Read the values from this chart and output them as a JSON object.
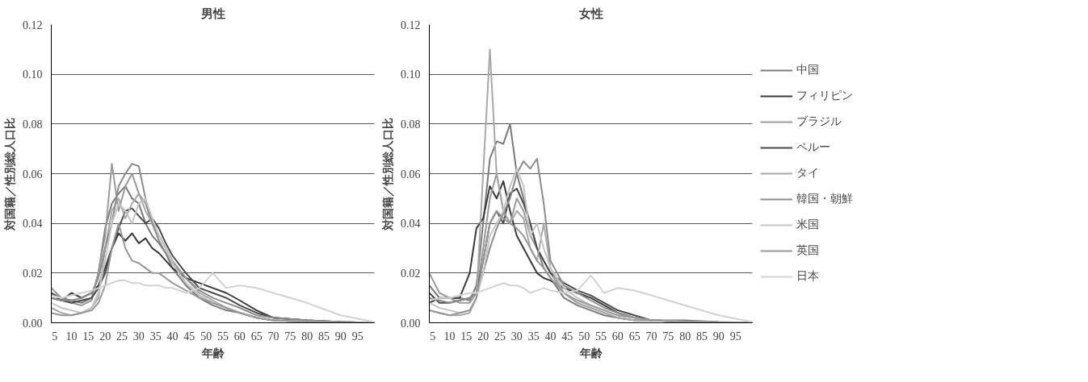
{
  "chart_data": [
    {
      "type": "line",
      "title": "男性",
      "xlabel": "年齢",
      "ylabel": "対国籍／性別総人口比",
      "grid": "y",
      "x": [
        4,
        7,
        10,
        13,
        16,
        18,
        20,
        22,
        24,
        26,
        28,
        30,
        32,
        34,
        36,
        38,
        40,
        44,
        48,
        52,
        56,
        60,
        65,
        70,
        80,
        90,
        100
      ],
      "xlim": [
        4,
        100
      ],
      "xticks": [
        5,
        10,
        15,
        20,
        25,
        30,
        35,
        40,
        45,
        50,
        55,
        60,
        65,
        70,
        75,
        80,
        85,
        90,
        95
      ],
      "ylim": [
        0,
        0.12
      ],
      "yticks": [
        {
          "value": 0,
          "label": "0.00"
        },
        {
          "value": 0.02,
          "label": "0.02"
        },
        {
          "value": 0.04,
          "label": "0.04"
        },
        {
          "value": 0.06,
          "label": "0.06"
        },
        {
          "value": 0.08,
          "label": "0.08"
        },
        {
          "value": 0.1,
          "label": "0.10"
        },
        {
          "value": 0.12,
          "label": "0.12"
        }
      ],
      "series": [
        {
          "color": "#7a7a7a",
          "values": [
            0.012,
            0.01,
            0.009,
            0.008,
            0.01,
            0.02,
            0.038,
            0.048,
            0.052,
            0.055,
            0.05,
            0.048,
            0.04,
            0.035,
            0.032,
            0.028,
            0.022,
            0.015,
            0.01,
            0.007,
            0.005,
            0.004,
            0.002,
            0.001,
            0.0005,
            0.0002,
            0
          ]
        },
        {
          "color": "#3a3a3a",
          "values": [
            0.01,
            0.009,
            0.012,
            0.01,
            0.012,
            0.015,
            0.022,
            0.03,
            0.036,
            0.033,
            0.036,
            0.032,
            0.034,
            0.03,
            0.028,
            0.025,
            0.022,
            0.018,
            0.016,
            0.014,
            0.012,
            0.009,
            0.005,
            0.002,
            0.001,
            0.0003,
            0
          ]
        },
        {
          "color": "#9a9a9a",
          "values": [
            0.014,
            0.01,
            0.008,
            0.007,
            0.009,
            0.02,
            0.035,
            0.064,
            0.045,
            0.055,
            0.06,
            0.052,
            0.048,
            0.04,
            0.035,
            0.03,
            0.024,
            0.016,
            0.011,
            0.008,
            0.006,
            0.004,
            0.002,
            0.001,
            0.0005,
            0.0002,
            0
          ]
        },
        {
          "color": "#4a4a4a",
          "values": [
            0.012,
            0.009,
            0.008,
            0.009,
            0.01,
            0.014,
            0.02,
            0.03,
            0.038,
            0.045,
            0.046,
            0.043,
            0.04,
            0.042,
            0.038,
            0.032,
            0.027,
            0.02,
            0.014,
            0.012,
            0.01,
            0.007,
            0.004,
            0.002,
            0.001,
            0.0003,
            0
          ]
        },
        {
          "color": "#a8a8a8",
          "values": [
            0.006,
            0.004,
            0.003,
            0.004,
            0.006,
            0.01,
            0.03,
            0.045,
            0.05,
            0.042,
            0.048,
            0.052,
            0.045,
            0.04,
            0.035,
            0.03,
            0.025,
            0.018,
            0.012,
            0.009,
            0.006,
            0.004,
            0.002,
            0.001,
            0.0005,
            0.0002,
            0
          ]
        },
        {
          "color": "#8c8c8c",
          "values": [
            0.01,
            0.009,
            0.009,
            0.01,
            0.012,
            0.018,
            0.03,
            0.04,
            0.055,
            0.06,
            0.064,
            0.063,
            0.05,
            0.04,
            0.033,
            0.028,
            0.024,
            0.018,
            0.013,
            0.01,
            0.008,
            0.006,
            0.003,
            0.002,
            0.001,
            0.0003,
            0
          ]
        },
        {
          "color": "#c4c4c4",
          "values": [
            0.008,
            0.006,
            0.005,
            0.004,
            0.006,
            0.012,
            0.025,
            0.04,
            0.048,
            0.045,
            0.04,
            0.048,
            0.05,
            0.042,
            0.035,
            0.03,
            0.024,
            0.016,
            0.011,
            0.008,
            0.006,
            0.004,
            0.002,
            0.001,
            0.0005,
            0.0002,
            0
          ]
        },
        {
          "color": "#989898",
          "values": [
            0.004,
            0.003,
            0.003,
            0.004,
            0.005,
            0.008,
            0.015,
            0.03,
            0.04,
            0.03,
            0.025,
            0.024,
            0.022,
            0.02,
            0.02,
            0.018,
            0.016,
            0.013,
            0.01,
            0.008,
            0.006,
            0.004,
            0.002,
            0.001,
            0.0005,
            0.0002,
            0
          ]
        },
        {
          "color": "#d2d2d2",
          "values": [
            0.011,
            0.01,
            0.011,
            0.012,
            0.013,
            0.014,
            0.015,
            0.016,
            0.017,
            0.017,
            0.016,
            0.016,
            0.015,
            0.015,
            0.015,
            0.014,
            0.014,
            0.012,
            0.014,
            0.02,
            0.014,
            0.015,
            0.014,
            0.012,
            0.008,
            0.003,
            0.0003
          ]
        }
      ]
    },
    {
      "type": "line",
      "title": "女性",
      "xlabel": "年齢",
      "ylabel": "対国籍／性別総人口比",
      "legend": "right",
      "grid": "y",
      "x": [
        4,
        7,
        10,
        13,
        16,
        18,
        20,
        22,
        24,
        26,
        28,
        30,
        32,
        34,
        36,
        38,
        40,
        44,
        48,
        52,
        56,
        60,
        65,
        70,
        80,
        90,
        100
      ],
      "xlim": [
        4,
        100
      ],
      "xticks": [
        5,
        10,
        15,
        20,
        25,
        30,
        35,
        40,
        45,
        50,
        55,
        60,
        65,
        70,
        75,
        80,
        85,
        90,
        95
      ],
      "ylim": [
        0,
        0.12
      ],
      "yticks": [
        {
          "value": 0,
          "label": "0.00"
        },
        {
          "value": 0.02,
          "label": "0.02"
        },
        {
          "value": 0.04,
          "label": "0.04"
        },
        {
          "value": 0.06,
          "label": "0.06"
        },
        {
          "value": 0.08,
          "label": "0.08"
        },
        {
          "value": 0.1,
          "label": "0.10"
        },
        {
          "value": 0.12,
          "label": "0.12"
        }
      ],
      "series": [
        {
          "name": "中国",
          "color": "#7a7a7a",
          "values": [
            0.015,
            0.01,
            0.01,
            0.01,
            0.009,
            0.015,
            0.04,
            0.066,
            0.073,
            0.072,
            0.08,
            0.06,
            0.05,
            0.04,
            0.03,
            0.022,
            0.018,
            0.01,
            0.007,
            0.005,
            0.003,
            0.002,
            0.001,
            0.001,
            0.001,
            0.0003,
            0
          ]
        },
        {
          "name": "フィリピン",
          "color": "#3a3a3a",
          "values": [
            0.008,
            0.01,
            0.01,
            0.01,
            0.02,
            0.038,
            0.042,
            0.055,
            0.05,
            0.057,
            0.045,
            0.035,
            0.03,
            0.025,
            0.02,
            0.018,
            0.017,
            0.014,
            0.012,
            0.01,
            0.007,
            0.004,
            0.002,
            0.001,
            0.0005,
            0.0002,
            0
          ]
        },
        {
          "name": "ブラジル",
          "color": "#9a9a9a",
          "values": [
            0.02,
            0.012,
            0.01,
            0.008,
            0.008,
            0.012,
            0.03,
            0.05,
            0.06,
            0.045,
            0.04,
            0.05,
            0.045,
            0.035,
            0.03,
            0.025,
            0.02,
            0.012,
            0.008,
            0.006,
            0.004,
            0.002,
            0.001,
            0.001,
            0.0005,
            0.0002,
            0
          ]
        },
        {
          "name": "ペルー",
          "color": "#4a4a4a",
          "values": [
            0.012,
            0.008,
            0.008,
            0.009,
            0.01,
            0.012,
            0.025,
            0.04,
            0.045,
            0.04,
            0.052,
            0.054,
            0.048,
            0.04,
            0.03,
            0.025,
            0.02,
            0.016,
            0.013,
            0.011,
            0.008,
            0.005,
            0.003,
            0.001,
            0.0005,
            0.0002,
            0
          ]
        },
        {
          "name": "タイ",
          "color": "#a8a8a8",
          "values": [
            0.005,
            0.004,
            0.003,
            0.003,
            0.004,
            0.01,
            0.06,
            0.11,
            0.06,
            0.045,
            0.04,
            0.045,
            0.042,
            0.03,
            0.025,
            0.04,
            0.022,
            0.012,
            0.008,
            0.006,
            0.004,
            0.002,
            0.001,
            0.001,
            0.0005,
            0.0002,
            0
          ]
        },
        {
          "name": "韓国・朝鮮",
          "color": "#8c8c8c",
          "values": [
            0.01,
            0.009,
            0.008,
            0.009,
            0.01,
            0.012,
            0.02,
            0.03,
            0.038,
            0.044,
            0.05,
            0.06,
            0.065,
            0.062,
            0.066,
            0.048,
            0.025,
            0.015,
            0.012,
            0.009,
            0.006,
            0.004,
            0.002,
            0.001,
            0.0005,
            0.0002,
            0
          ]
        },
        {
          "name": "米国",
          "color": "#c4c4c4",
          "values": [
            0.008,
            0.006,
            0.005,
            0.004,
            0.005,
            0.01,
            0.02,
            0.035,
            0.04,
            0.045,
            0.055,
            0.062,
            0.055,
            0.035,
            0.04,
            0.03,
            0.022,
            0.014,
            0.01,
            0.007,
            0.005,
            0.003,
            0.002,
            0.001,
            0.0005,
            0.0002,
            0
          ]
        },
        {
          "name": "英国",
          "color": "#989898",
          "values": [
            0.005,
            0.004,
            0.003,
            0.004,
            0.005,
            0.01,
            0.025,
            0.04,
            0.045,
            0.042,
            0.04,
            0.038,
            0.035,
            0.03,
            0.025,
            0.022,
            0.018,
            0.012,
            0.009,
            0.007,
            0.005,
            0.003,
            0.002,
            0.001,
            0.0005,
            0.0002,
            0
          ]
        },
        {
          "name": "日本",
          "color": "#d2d2d2",
          "values": [
            0.009,
            0.01,
            0.01,
            0.011,
            0.012,
            0.012,
            0.013,
            0.014,
            0.015,
            0.016,
            0.015,
            0.015,
            0.014,
            0.012,
            0.013,
            0.014,
            0.013,
            0.012,
            0.013,
            0.019,
            0.012,
            0.014,
            0.013,
            0.011,
            0.007,
            0.003,
            0.0003
          ]
        }
      ]
    }
  ]
}
